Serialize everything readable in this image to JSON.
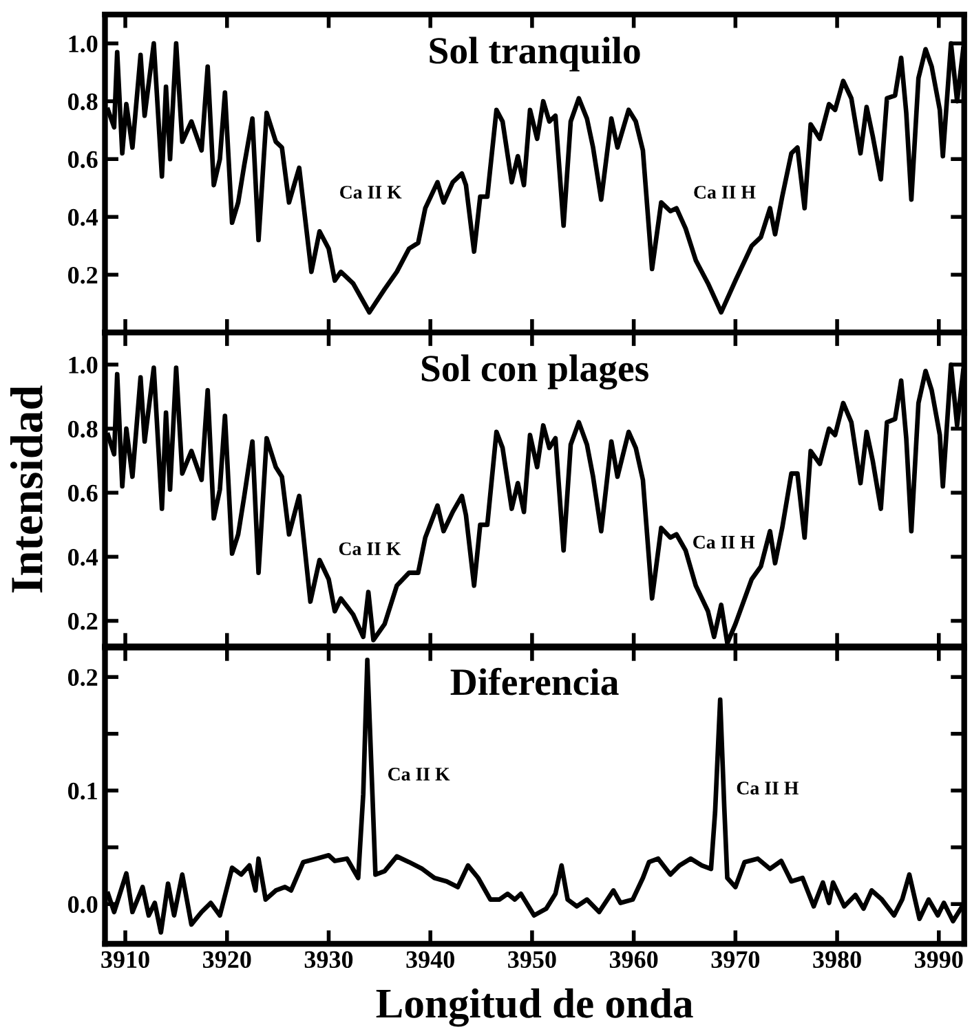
{
  "chart_data": [
    {
      "type": "line",
      "title": "Sol tranquilo",
      "tick_labels": "y",
      "xlim": [
        3908,
        3992.5
      ],
      "xticks": [
        3910,
        3920,
        3930,
        3940,
        3950,
        3960,
        3970,
        3980,
        3990
      ],
      "ylim": [
        0.0,
        1.1
      ],
      "yticks": [
        0.2,
        0.4,
        0.6,
        0.8,
        {
          "value": 1,
          "label": "1.0"
        }
      ],
      "grid": false,
      "legend": false,
      "annotations": [
        "Ca II K",
        "Ca II H"
      ],
      "series": [
        {
          "color": "#000000",
          "x": [
            3908.3,
            3908.9,
            3909.2,
            3909.7,
            3910.1,
            3910.7,
            3911.5,
            3911.9,
            3912.8,
            3913.6,
            3914.0,
            3914.4,
            3915.0,
            3915.6,
            3916.5,
            3917.5,
            3918.1,
            3918.7,
            3919.3,
            3919.8,
            3920.5,
            3921.1,
            3921.7,
            3922.5,
            3923.1,
            3923.9,
            3924.8,
            3925.4,
            3926.1,
            3927.1,
            3928.3,
            3929.1,
            3930.0,
            3930.6,
            3931.2,
            3932.4,
            3934.0,
            3935.5,
            3936.7,
            3937.9,
            3938.8,
            3939.5,
            3940.7,
            3941.3,
            3942.2,
            3943.1,
            3943.5,
            3944.3,
            3944.9,
            3945.6,
            3946.5,
            3947.1,
            3948.0,
            3948.6,
            3949.2,
            3949.8,
            3950.5,
            3951.1,
            3951.7,
            3952.3,
            3953.1,
            3953.8,
            3954.6,
            3955.4,
            3956.0,
            3956.8,
            3957.8,
            3958.4,
            3959.5,
            3960.2,
            3960.9,
            3961.8,
            3962.7,
            3963.6,
            3964.2,
            3965.1,
            3966.1,
            3967.3,
            3968.6,
            3970.0,
            3971.6,
            3972.5,
            3973.4,
            3973.9,
            3974.6,
            3975.5,
            3976.1,
            3976.8,
            3977.4,
            3978.3,
            3979.2,
            3979.8,
            3980.6,
            3981.4,
            3982.3,
            3982.9,
            3983.5,
            3984.3,
            3984.9,
            3985.7,
            3986.3,
            3986.8,
            3987.3,
            3988.0,
            3988.7,
            3989.3,
            3990.1,
            3990.4,
            3991.2,
            3991.8,
            3992.4
          ],
          "values": [
            0.77,
            0.71,
            0.97,
            0.62,
            0.79,
            0.64,
            0.96,
            0.75,
            1.0,
            0.54,
            0.85,
            0.6,
            1.0,
            0.66,
            0.73,
            0.63,
            0.92,
            0.51,
            0.6,
            0.83,
            0.38,
            0.45,
            0.58,
            0.74,
            0.32,
            0.76,
            0.66,
            0.64,
            0.45,
            0.57,
            0.21,
            0.35,
            0.29,
            0.18,
            0.21,
            0.17,
            0.07,
            0.15,
            0.21,
            0.29,
            0.31,
            0.43,
            0.52,
            0.45,
            0.52,
            0.55,
            0.51,
            0.28,
            0.47,
            0.47,
            0.77,
            0.73,
            0.52,
            0.61,
            0.51,
            0.77,
            0.67,
            0.8,
            0.73,
            0.75,
            0.37,
            0.73,
            0.81,
            0.74,
            0.64,
            0.46,
            0.74,
            0.64,
            0.77,
            0.73,
            0.63,
            0.22,
            0.45,
            0.42,
            0.43,
            0.36,
            0.25,
            0.17,
            0.07,
            0.18,
            0.3,
            0.33,
            0.43,
            0.34,
            0.47,
            0.62,
            0.64,
            0.43,
            0.72,
            0.67,
            0.79,
            0.77,
            0.87,
            0.81,
            0.62,
            0.78,
            0.68,
            0.53,
            0.81,
            0.82,
            0.95,
            0.76,
            0.46,
            0.88,
            0.98,
            0.92,
            0.77,
            0.61,
            1.0,
            0.8,
            0.98
          ]
        }
      ]
    },
    {
      "type": "line",
      "title": "Sol con plages",
      "ylabel": "Intensidad",
      "tick_labels": "y",
      "xlim": [
        3908,
        3992.5
      ],
      "xticks": [
        3910,
        3920,
        3930,
        3940,
        3950,
        3960,
        3970,
        3980,
        3990
      ],
      "ylim": [
        0.12,
        1.1
      ],
      "yticks": [
        0.2,
        0.4,
        0.6,
        0.8,
        {
          "value": 1,
          "label": "1.0"
        }
      ],
      "grid": false,
      "legend": false,
      "annotations": [
        "Ca II K",
        "Ca II H"
      ],
      "series": [
        {
          "color": "#000000",
          "x": [
            3908.3,
            3908.9,
            3909.2,
            3909.7,
            3910.1,
            3910.7,
            3911.5,
            3911.9,
            3912.8,
            3913.6,
            3914.0,
            3914.4,
            3915.0,
            3915.6,
            3916.5,
            3917.5,
            3918.1,
            3918.7,
            3919.3,
            3919.8,
            3920.5,
            3921.1,
            3921.7,
            3922.5,
            3923.1,
            3923.9,
            3924.8,
            3925.4,
            3926.1,
            3927.1,
            3928.2,
            3929.1,
            3930.0,
            3930.6,
            3931.2,
            3932.4,
            3933.4,
            3933.9,
            3934.4,
            3935.5,
            3936.7,
            3937.9,
            3938.8,
            3939.5,
            3940.7,
            3941.3,
            3942.2,
            3943.1,
            3943.5,
            3944.3,
            3944.9,
            3945.6,
            3946.5,
            3947.1,
            3948.0,
            3948.6,
            3949.2,
            3949.8,
            3950.5,
            3951.1,
            3951.7,
            3952.3,
            3953.1,
            3953.8,
            3954.6,
            3955.4,
            3956.0,
            3956.8,
            3957.8,
            3958.4,
            3959.5,
            3960.2,
            3960.9,
            3961.8,
            3962.7,
            3963.6,
            3964.2,
            3965.1,
            3966.1,
            3967.3,
            3967.9,
            3968.6,
            3969.2,
            3970.0,
            3971.6,
            3972.5,
            3973.4,
            3973.9,
            3974.6,
            3975.5,
            3976.1,
            3976.8,
            3977.4,
            3978.3,
            3979.2,
            3979.8,
            3980.6,
            3981.4,
            3982.3,
            3982.9,
            3983.5,
            3984.3,
            3984.9,
            3985.7,
            3986.3,
            3986.8,
            3987.3,
            3988.0,
            3988.7,
            3989.3,
            3990.1,
            3990.4,
            3991.2,
            3991.8,
            3992.4
          ],
          "values": [
            0.78,
            0.72,
            0.97,
            0.62,
            0.8,
            0.65,
            0.96,
            0.76,
            0.99,
            0.55,
            0.85,
            0.61,
            0.99,
            0.66,
            0.73,
            0.64,
            0.92,
            0.52,
            0.61,
            0.84,
            0.41,
            0.47,
            0.59,
            0.76,
            0.35,
            0.77,
            0.68,
            0.65,
            0.47,
            0.59,
            0.26,
            0.39,
            0.33,
            0.23,
            0.27,
            0.22,
            0.15,
            0.29,
            0.14,
            0.19,
            0.31,
            0.35,
            0.35,
            0.46,
            0.56,
            0.48,
            0.54,
            0.59,
            0.53,
            0.31,
            0.5,
            0.5,
            0.79,
            0.74,
            0.55,
            0.63,
            0.54,
            0.78,
            0.68,
            0.81,
            0.74,
            0.77,
            0.42,
            0.75,
            0.82,
            0.75,
            0.65,
            0.48,
            0.76,
            0.65,
            0.79,
            0.74,
            0.64,
            0.27,
            0.49,
            0.46,
            0.47,
            0.42,
            0.31,
            0.23,
            0.15,
            0.25,
            0.13,
            0.19,
            0.33,
            0.37,
            0.48,
            0.38,
            0.49,
            0.66,
            0.66,
            0.46,
            0.73,
            0.69,
            0.8,
            0.78,
            0.88,
            0.82,
            0.63,
            0.79,
            0.7,
            0.55,
            0.82,
            0.83,
            0.95,
            0.77,
            0.48,
            0.88,
            0.98,
            0.92,
            0.78,
            0.62,
            1.0,
            0.81,
            0.98
          ]
        }
      ]
    },
    {
      "type": "line",
      "title": "Diferencia",
      "xlabel": "Longitud de onda",
      "xlim": [
        3908,
        3992.5
      ],
      "xticks": [
        3910,
        3920,
        3930,
        3940,
        3950,
        3960,
        3970,
        3980,
        3990
      ],
      "ylim": [
        -0.035,
        0.226
      ],
      "yticks": [
        {
          "value": 0,
          "label": "0.0"
        },
        {
          "value": 0.05,
          "label": null
        },
        0.1,
        {
          "value": 0.15,
          "label": null
        },
        0.2
      ],
      "grid": false,
      "legend": false,
      "annotations": [
        "Ca II K",
        "Ca II H"
      ],
      "series": [
        {
          "color": "#000000",
          "x": [
            3908.3,
            3908.9,
            3910.1,
            3910.7,
            3911.7,
            3912.3,
            3912.9,
            3913.5,
            3914.2,
            3914.8,
            3915.6,
            3916.5,
            3917.5,
            3918.4,
            3919.3,
            3920.5,
            3921.4,
            3922.2,
            3922.8,
            3923.1,
            3923.8,
            3924.8,
            3925.7,
            3926.3,
            3927.5,
            3928.8,
            3930.0,
            3930.6,
            3931.8,
            3932.9,
            3933.4,
            3933.8,
            3934.3,
            3934.6,
            3935.5,
            3936.7,
            3937.9,
            3939.2,
            3940.4,
            3941.6,
            3942.7,
            3943.7,
            3944.7,
            3945.9,
            3946.8,
            3947.6,
            3948.3,
            3948.9,
            3950.2,
            3951.4,
            3952.3,
            3952.9,
            3953.5,
            3954.4,
            3955.4,
            3956.6,
            3958.0,
            3958.7,
            3959.9,
            3960.9,
            3961.5,
            3962.4,
            3963.6,
            3964.5,
            3965.6,
            3966.7,
            3967.6,
            3968.0,
            3968.5,
            3968.9,
            3969.2,
            3970.0,
            3970.9,
            3972.2,
            3973.4,
            3974.5,
            3975.5,
            3976.6,
            3977.7,
            3978.6,
            3979.2,
            3979.6,
            3980.7,
            3981.8,
            3982.6,
            3983.4,
            3984.4,
            3985.6,
            3986.4,
            3987.1,
            3988.1,
            3989.0,
            3989.9,
            3990.5,
            3991.4,
            3992.3
          ],
          "values": [
            0.009,
            -0.007,
            0.027,
            -0.007,
            0.015,
            -0.01,
            0.001,
            -0.025,
            0.018,
            -0.01,
            0.026,
            -0.018,
            -0.007,
            0.001,
            -0.01,
            0.032,
            0.026,
            0.034,
            0.012,
            0.04,
            0.004,
            0.012,
            0.015,
            0.012,
            0.037,
            0.04,
            0.043,
            0.038,
            0.04,
            0.023,
            0.097,
            0.215,
            0.097,
            0.026,
            0.029,
            0.042,
            0.037,
            0.031,
            0.023,
            0.02,
            0.015,
            0.034,
            0.023,
            0.004,
            0.004,
            0.009,
            0.004,
            0.009,
            -0.01,
            -0.004,
            0.009,
            0.034,
            0.004,
            -0.002,
            0.004,
            -0.007,
            0.012,
            0.001,
            0.004,
            0.023,
            0.037,
            0.04,
            0.026,
            0.034,
            0.04,
            0.034,
            0.031,
            0.081,
            0.18,
            0.086,
            0.023,
            0.015,
            0.037,
            0.04,
            0.031,
            0.038,
            0.02,
            0.023,
            -0.002,
            0.019,
            0.001,
            0.019,
            -0.002,
            0.008,
            -0.004,
            0.012,
            0.004,
            -0.01,
            0.004,
            0.026,
            -0.013,
            0.004,
            -0.01,
            0.001,
            -0.015,
            -0.002
          ]
        }
      ]
    }
  ]
}
